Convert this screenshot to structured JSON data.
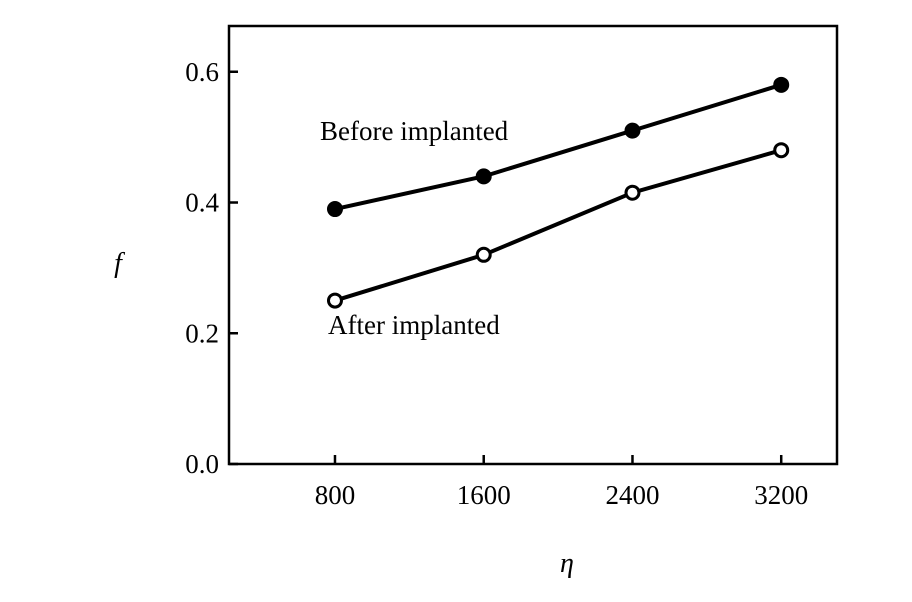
{
  "chart_data": {
    "type": "line",
    "title": "",
    "xlabel": "η",
    "ylabel": "f",
    "x": [
      800,
      1600,
      2400,
      3200
    ],
    "xticks": [
      "800",
      "1600",
      "2400",
      "3200"
    ],
    "yticks": [
      "0.0",
      "0.2",
      "0.4",
      "0.6"
    ],
    "xlim": [
      230,
      3500
    ],
    "ylim": [
      0,
      0.67
    ],
    "grid": false,
    "legend": "none",
    "series": [
      {
        "name": "Before implanted",
        "values": [
          0.39,
          0.44,
          0.51,
          0.58
        ],
        "marker": "filled-circle",
        "color": "#000000"
      },
      {
        "name": "After implanted",
        "values": [
          0.25,
          0.32,
          0.415,
          0.48
        ],
        "marker": "open-circle",
        "color": "#000000"
      }
    ],
    "annotations": [
      "Before implanted",
      "After implanted"
    ]
  }
}
